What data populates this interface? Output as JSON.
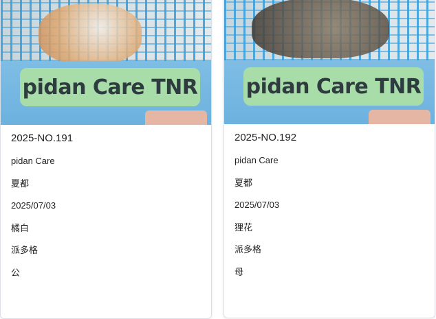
{
  "cards": [
    {
      "photo_label": "pidan Care TNR",
      "id": "2025-NO.191",
      "organization": "pidan Care",
      "location": "夏都",
      "date": "2025/07/03",
      "coat": "橘白",
      "caretaker": "派多格",
      "sex": "公"
    },
    {
      "photo_label": "pidan Care TNR",
      "id": "2025-NO.192",
      "organization": "pidan Care",
      "location": "夏都",
      "date": "2025/07/03",
      "coat": "狸花",
      "caretaker": "派多格",
      "sex": "母"
    }
  ]
}
